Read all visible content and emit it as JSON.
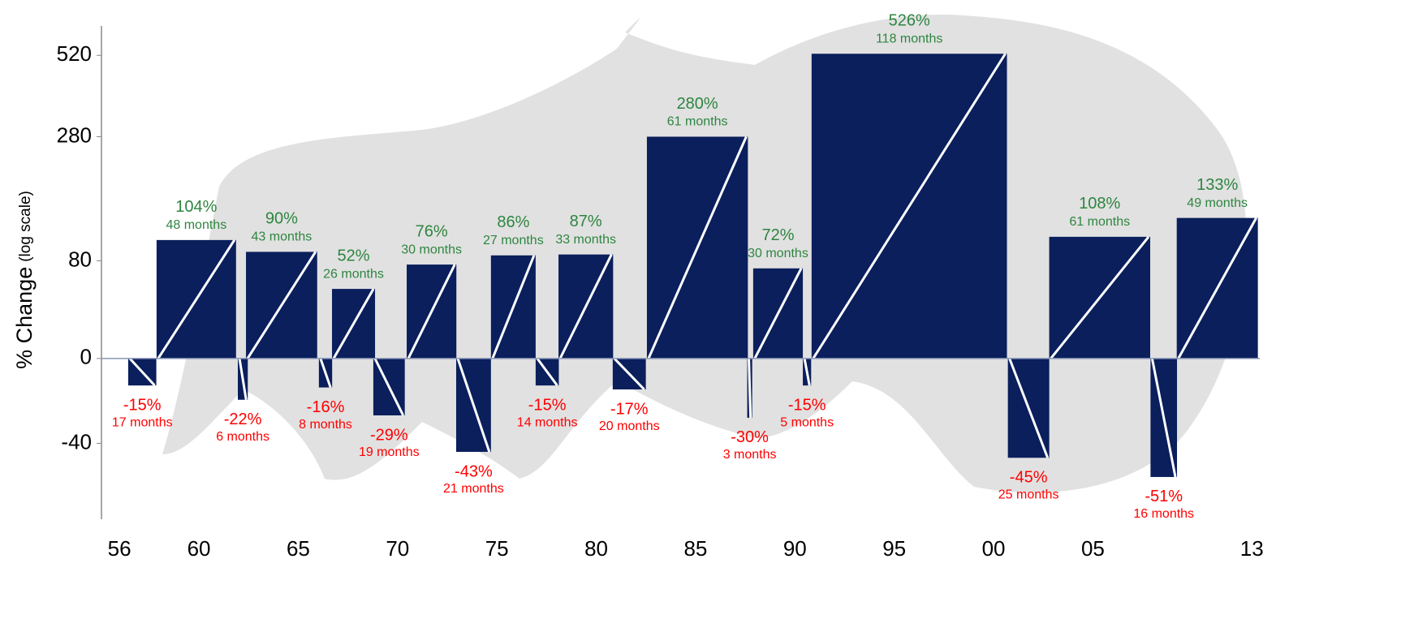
{
  "chart_data": {
    "type": "bull-bear",
    "y_label": "% Change",
    "y_label_note": "(log scale)",
    "log_scale": true,
    "bar_color": "#0a1f5c",
    "line_color": "#ffffff",
    "bull_label_color": "#2e8540",
    "bear_label_color": "#ff0000",
    "x": [
      1956.44,
      1957.87,
      1961.96,
      1962.37,
      1966.04,
      1966.7,
      1968.78,
      1970.46,
      1972.95,
      1974.7,
      1976.95,
      1978.1,
      1980.83,
      1982.55,
      1987.6,
      1987.9,
      1990.4,
      1990.84,
      2000.72,
      2002.8,
      2007.9,
      2009.22
    ],
    "months": [
      17,
      48,
      6,
      43,
      8,
      26,
      19,
      30,
      21,
      27,
      14,
      33,
      20,
      61,
      3,
      30,
      5,
      118,
      25,
      61,
      16,
      49
    ],
    "month_labels": [
      "17 months",
      "48 months",
      "6 months",
      "43 months",
      "8 months",
      "26 months",
      "19 months",
      "30 months",
      "21 months",
      "27 months",
      "14 months",
      "33 months",
      "20 months",
      "61 months",
      "3 months",
      "30 months",
      "5 months",
      "118 months",
      "25 months",
      "61 months",
      "16 months",
      "49 months"
    ],
    "values": [
      -15,
      104,
      -22,
      90,
      -16,
      52,
      -29,
      76,
      -43,
      86,
      -15,
      87,
      -17,
      280,
      -30,
      72,
      -15,
      526,
      -45,
      108,
      -51,
      133
    ],
    "value_labels": [
      "-15%",
      "104%",
      "-22%",
      "90%",
      "-16%",
      "52%",
      "-29%",
      "76%",
      "-43%",
      "86%",
      "-15%",
      "87%",
      "-17%",
      "280%",
      "-30%",
      "72%",
      "-15%",
      "526%",
      "-45%",
      "108%",
      "-51%",
      "133%"
    ],
    "xlim": [
      1955.3,
      2013.4
    ],
    "xticks": [
      {
        "value": 1956,
        "label": "56"
      },
      {
        "value": 1960,
        "label": "60"
      },
      {
        "value": 1965,
        "label": "65"
      },
      {
        "value": 1970,
        "label": "70"
      },
      {
        "value": 1975,
        "label": "75"
      },
      {
        "value": 1980,
        "label": "80"
      },
      {
        "value": 1985,
        "label": "85"
      },
      {
        "value": 1990,
        "label": "90"
      },
      {
        "value": 1995,
        "label": "95"
      },
      {
        "value": 2000,
        "label": "00"
      },
      {
        "value": 2005,
        "label": "05"
      },
      {
        "value": 2013,
        "label": "13"
      }
    ],
    "ylim": [
      -62,
      640
    ],
    "yticks": [
      520,
      280,
      80,
      0,
      -40
    ]
  }
}
